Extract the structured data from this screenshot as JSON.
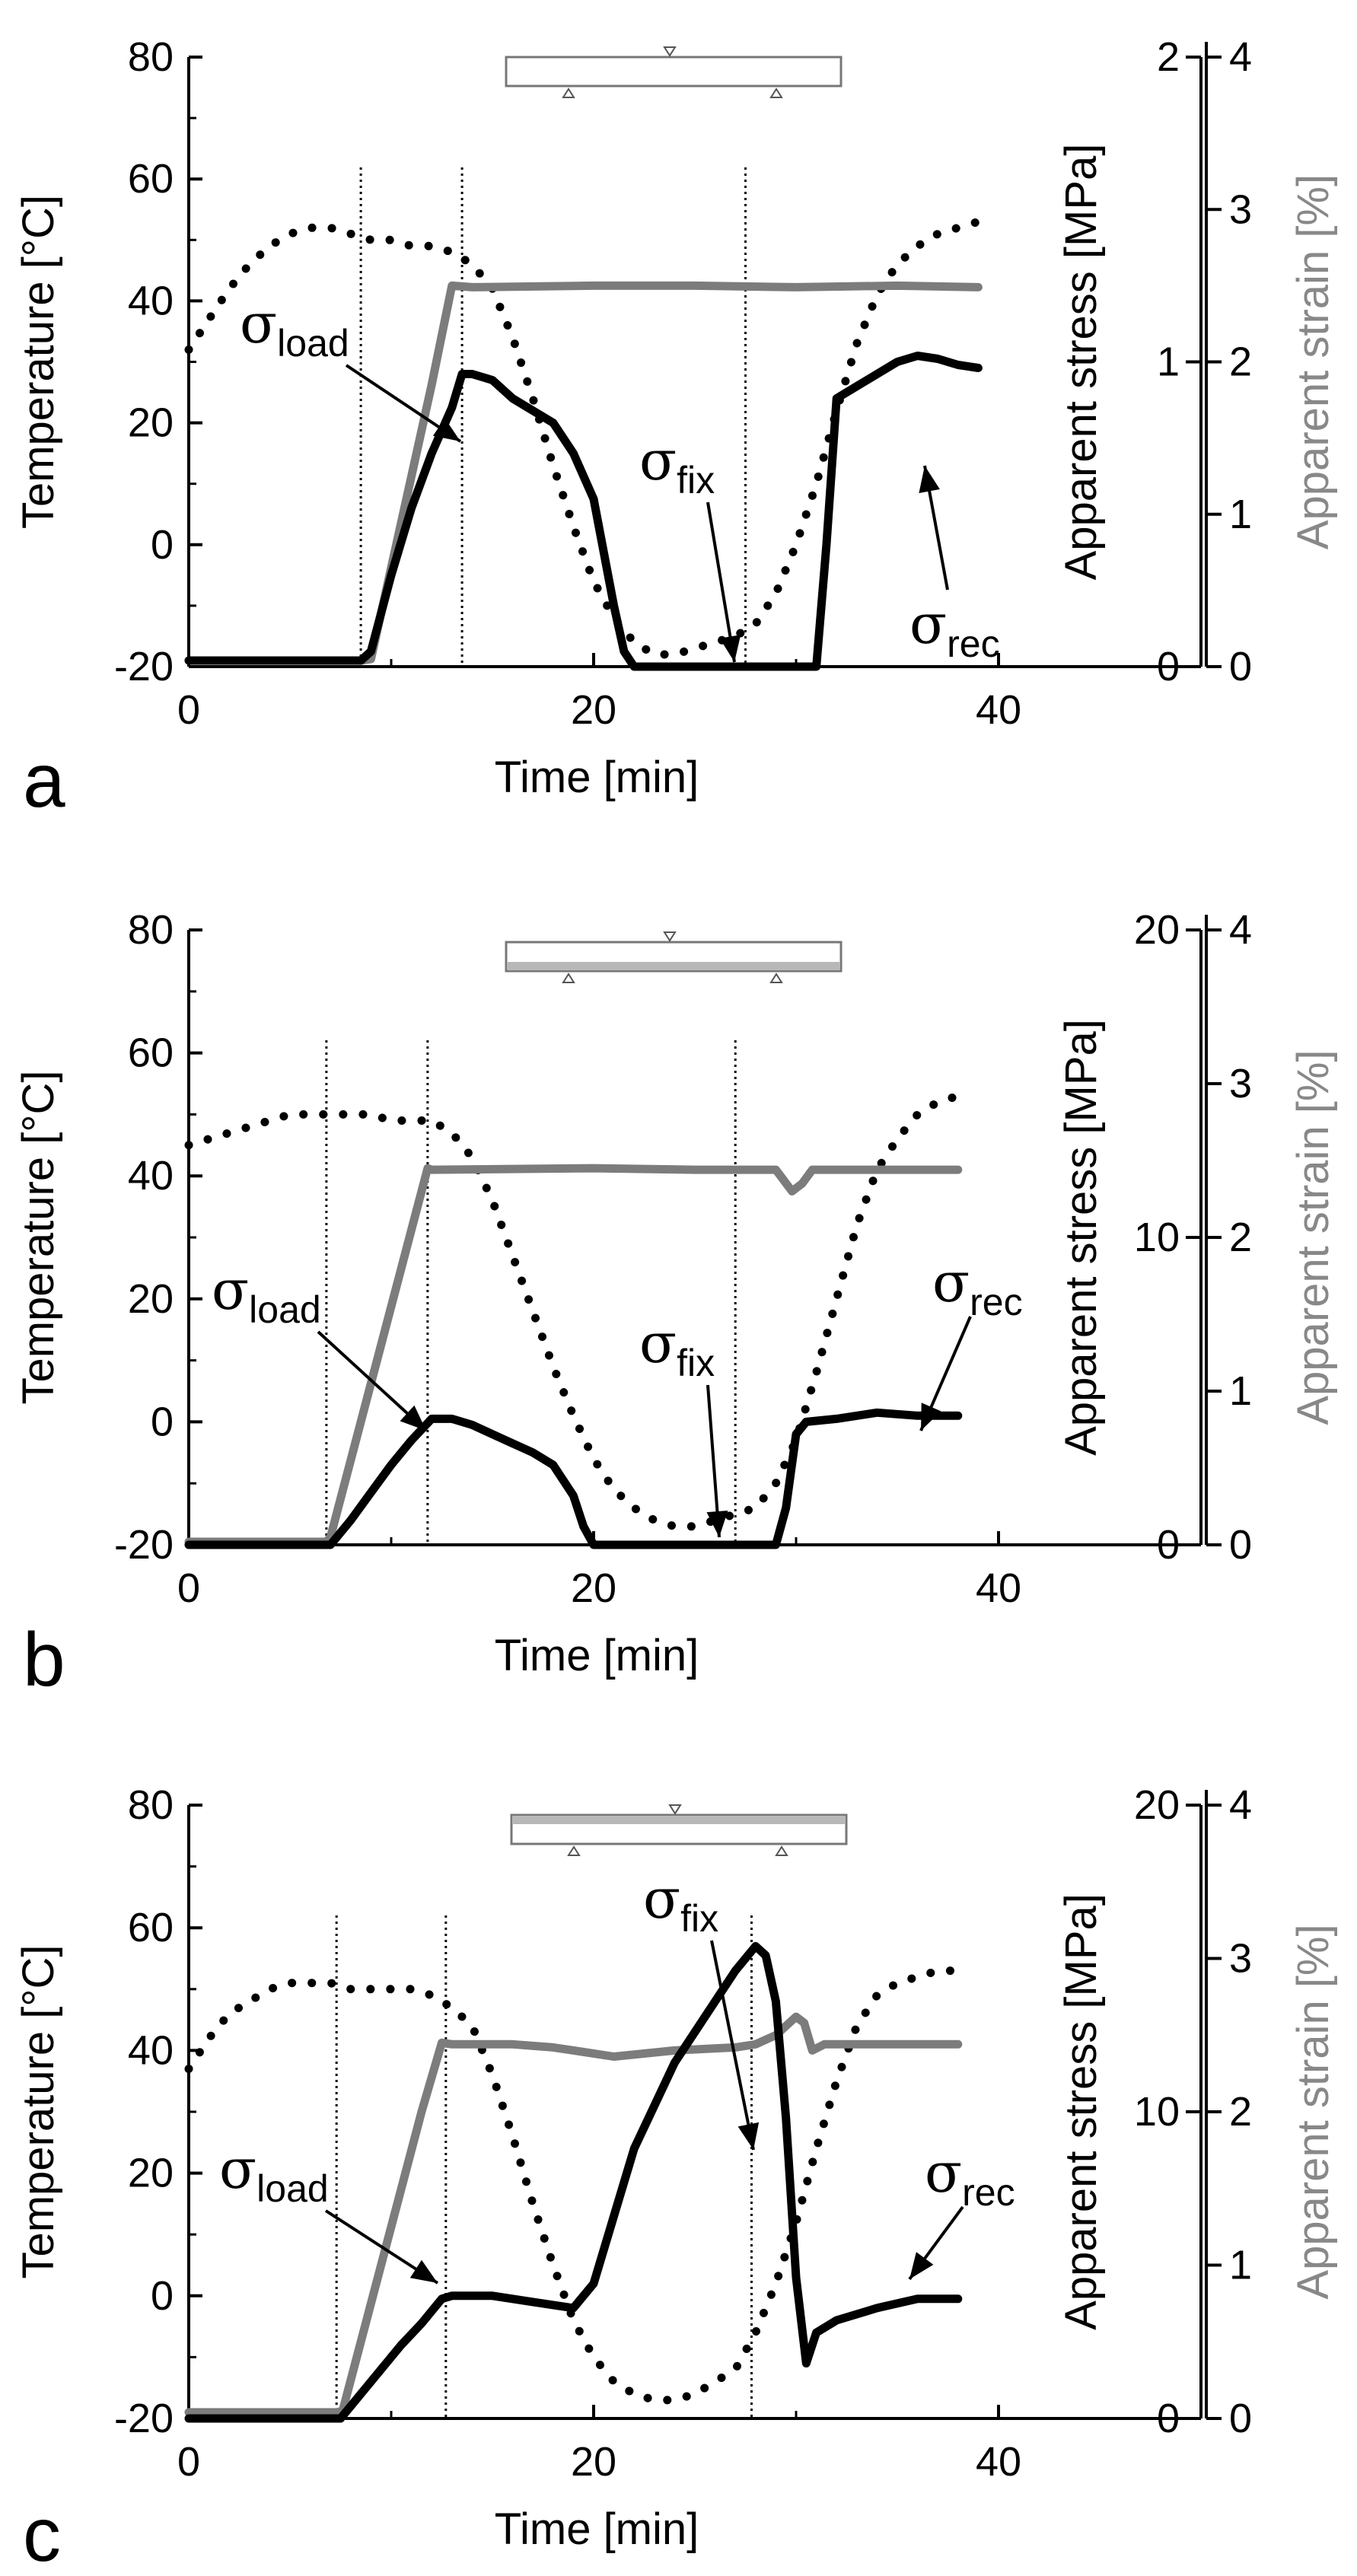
{
  "chart_data": [
    {
      "panel": "a",
      "type": "line",
      "xlabel": "Time [min]",
      "ylabel_left": "Temperature [°C]",
      "ylabel_stress": "Apparent stress [MPa]",
      "ylabel_strain": "Apparent strain [%]",
      "xlim": [
        0,
        50
      ],
      "ylim_temp": [
        -20,
        80
      ],
      "ylim_stress": [
        0,
        2
      ],
      "ylim_strain": [
        0,
        4
      ],
      "x_ticks": [
        "0",
        "20",
        "40"
      ],
      "temp_ticks": [
        "-20",
        "0",
        "20",
        "40",
        "60",
        "80"
      ],
      "stress_ticks": [
        "0",
        "1",
        "2"
      ],
      "strain_ticks": [
        "0",
        "1",
        "2",
        "3",
        "4"
      ],
      "vlines": [
        8.5,
        13.5,
        27.5
      ],
      "annotations": {
        "load": {
          "sym": "σ",
          "sub": "load"
        },
        "fix": {
          "sym": "σ",
          "sub": "fix"
        },
        "rec": {
          "sym": "σ",
          "sub": "rec"
        }
      },
      "series": [
        {
          "name": "Temperature",
          "axis": "temp",
          "style": "dotted",
          "x": [
            0,
            1,
            2,
            3,
            4,
            5,
            6,
            7,
            8,
            9,
            10,
            11,
            12,
            13,
            14,
            15,
            16,
            17,
            18,
            19,
            20,
            21,
            22,
            23,
            24,
            25,
            26,
            27,
            28,
            29,
            30,
            31,
            32,
            33,
            34,
            35,
            36,
            37,
            38,
            39
          ],
          "y": [
            32,
            37,
            42,
            46,
            49,
            51,
            52,
            52,
            51,
            50,
            50,
            49,
            49,
            48,
            46,
            42,
            34,
            24,
            13,
            3,
            -6,
            -12,
            -16,
            -18,
            -18,
            -17,
            -16,
            -15,
            -13,
            -8,
            0,
            10,
            22,
            33,
            41,
            46,
            49,
            51,
            52,
            53
          ]
        },
        {
          "name": "Apparent strain",
          "axis": "strain",
          "style": "solid-gray",
          "x": [
            0,
            8.5,
            9,
            10,
            11,
            12,
            13,
            14,
            20,
            25,
            30,
            35,
            39
          ],
          "y": [
            0.04,
            0.04,
            0.05,
            0.65,
            1.25,
            1.85,
            2.5,
            2.49,
            2.5,
            2.5,
            2.49,
            2.5,
            2.49
          ]
        },
        {
          "name": "Apparent stress",
          "axis": "stress",
          "style": "solid-black",
          "x": [
            0,
            8.5,
            9,
            10,
            11,
            12,
            13,
            13.5,
            14,
            15,
            16,
            17,
            18,
            19,
            20,
            21,
            21.5,
            22,
            25,
            27,
            28,
            29,
            30,
            31,
            31.5,
            32,
            32.5,
            33,
            34,
            35,
            36,
            37,
            38,
            39
          ],
          "y": [
            0.02,
            0.02,
            0.05,
            0.3,
            0.52,
            0.7,
            0.85,
            0.96,
            0.96,
            0.94,
            0.88,
            0.84,
            0.8,
            0.7,
            0.55,
            0.2,
            0.05,
            0,
            0,
            0,
            0,
            0,
            0,
            0,
            0.4,
            0.88,
            0.9,
            0.92,
            0.96,
            1.0,
            1.02,
            1.01,
            0.99,
            0.98
          ]
        }
      ]
    },
    {
      "panel": "b",
      "type": "line",
      "xlabel": "Time [min]",
      "ylabel_left": "Temperature [°C]",
      "ylabel_stress": "Apparent stress [MPa]",
      "ylabel_strain": "Apparent strain [%]",
      "xlim": [
        0,
        50
      ],
      "ylim_temp": [
        -20,
        80
      ],
      "ylim_stress": [
        0,
        20
      ],
      "ylim_strain": [
        0,
        4
      ],
      "x_ticks": [
        "0",
        "20",
        "40"
      ],
      "temp_ticks": [
        "-20",
        "0",
        "20",
        "40",
        "60",
        "80"
      ],
      "stress_ticks": [
        "0",
        "10",
        "20"
      ],
      "strain_ticks": [
        "0",
        "1",
        "2",
        "3",
        "4"
      ],
      "vlines": [
        6.8,
        11.8,
        27
      ],
      "annotations": {
        "load": {
          "sym": "σ",
          "sub": "load"
        },
        "fix": {
          "sym": "σ",
          "sub": "fix"
        },
        "rec": {
          "sym": "σ",
          "sub": "rec"
        }
      },
      "series": [
        {
          "name": "Temperature",
          "axis": "temp",
          "style": "dotted",
          "x": [
            0,
            1,
            2,
            3,
            4,
            5,
            6,
            7,
            8,
            9,
            10,
            11,
            12,
            13,
            14,
            15,
            16,
            17,
            18,
            19,
            20,
            21,
            22,
            23,
            24,
            25,
            26,
            27,
            28,
            29,
            30,
            31,
            32,
            33,
            34,
            35,
            36,
            37,
            38
          ],
          "y": [
            45,
            46,
            47,
            48,
            49,
            50,
            50,
            50,
            50,
            50,
            49,
            49,
            49,
            47,
            43,
            36,
            27,
            18,
            9,
            1,
            -6,
            -11,
            -14,
            -16,
            -17,
            -17,
            -16,
            -15,
            -14,
            -10,
            -3,
            8,
            20,
            32,
            41,
            46,
            50,
            52,
            53
          ]
        },
        {
          "name": "Apparent strain",
          "axis": "strain",
          "style": "solid-gray",
          "x": [
            0,
            6.8,
            7,
            8,
            9,
            10,
            11,
            11.8,
            12,
            20,
            25,
            29,
            29.8,
            30.3,
            30.8,
            35,
            38
          ],
          "y": [
            0.02,
            0.02,
            0.05,
            0.55,
            1.05,
            1.55,
            2.05,
            2.45,
            2.44,
            2.45,
            2.44,
            2.44,
            2.3,
            2.35,
            2.44,
            2.44,
            2.44
          ]
        },
        {
          "name": "Apparent stress",
          "axis": "stress",
          "style": "solid-black",
          "x": [
            0,
            7,
            8,
            9,
            10,
            11,
            12,
            13,
            14,
            15,
            16,
            17,
            18,
            19,
            19.5,
            20,
            25,
            29,
            29.5,
            30,
            30.5,
            32,
            34,
            36,
            38
          ],
          "y": [
            0,
            0,
            0.8,
            1.7,
            2.6,
            3.4,
            4.1,
            4.1,
            3.9,
            3.6,
            3.3,
            3.0,
            2.6,
            1.6,
            0.6,
            0,
            0,
            0,
            1.2,
            3.6,
            4.0,
            4.1,
            4.3,
            4.2,
            4.2
          ]
        }
      ]
    },
    {
      "panel": "c",
      "type": "line",
      "xlabel": "Time [min]",
      "ylabel_left": "Temperature [°C]",
      "ylabel_stress": "Apparent stress [MPa]",
      "ylabel_strain": "Apparent strain [%]",
      "xlim": [
        0,
        50
      ],
      "ylim_temp": [
        -20,
        80
      ],
      "ylim_stress": [
        0,
        20
      ],
      "ylim_strain": [
        0,
        4
      ],
      "x_ticks": [
        "0",
        "20",
        "40"
      ],
      "temp_ticks": [
        "-20",
        "0",
        "20",
        "40",
        "60",
        "80"
      ],
      "stress_ticks": [
        "0",
        "10",
        "20"
      ],
      "strain_ticks": [
        "0",
        "1",
        "2",
        "3",
        "4"
      ],
      "vlines": [
        7.3,
        12.7,
        27.8
      ],
      "annotations": {
        "load": {
          "sym": "σ",
          "sub": "load"
        },
        "fix": {
          "sym": "σ",
          "sub": "fix"
        },
        "rec": {
          "sym": "σ",
          "sub": "rec"
        }
      },
      "series": [
        {
          "name": "Temperature",
          "axis": "temp",
          "style": "dotted",
          "x": [
            0,
            1,
            2,
            3,
            4,
            5,
            6,
            7,
            8,
            9,
            10,
            11,
            12,
            13,
            14,
            15,
            16,
            17,
            18,
            19,
            20,
            21,
            22,
            23,
            24,
            25,
            26,
            27,
            28,
            29,
            30,
            31,
            32,
            33,
            34,
            35,
            36,
            37,
            38
          ],
          "y": [
            37,
            42,
            46,
            48,
            50,
            51,
            51,
            51,
            50,
            50,
            50,
            50,
            49,
            47,
            44,
            36,
            26,
            15,
            5,
            -4,
            -10,
            -14,
            -16,
            -17,
            -17,
            -16,
            -14,
            -12,
            -6,
            2,
            12,
            24,
            35,
            44,
            49,
            51,
            52,
            53,
            53
          ]
        },
        {
          "name": "Apparent strain",
          "axis": "strain",
          "style": "solid-gray",
          "x": [
            0,
            7.3,
            7.6,
            8.5,
            9.5,
            10.5,
            11.5,
            12.5,
            13,
            16,
            18,
            20,
            21,
            24,
            27,
            28,
            29,
            30,
            30.4,
            30.8,
            31.4,
            35,
            38
          ],
          "y": [
            0.04,
            0.04,
            0.05,
            0.5,
            1.0,
            1.5,
            2.0,
            2.45,
            2.44,
            2.44,
            2.42,
            2.38,
            2.36,
            2.4,
            2.42,
            2.44,
            2.5,
            2.62,
            2.58,
            2.4,
            2.44,
            2.44,
            2.44
          ]
        },
        {
          "name": "Apparent stress",
          "axis": "stress",
          "style": "solid-black",
          "x": [
            0,
            7.5,
            8.5,
            9.5,
            10.5,
            11.5,
            12.5,
            13,
            15,
            17,
            19,
            20,
            21,
            22,
            24,
            26,
            27,
            28,
            28.5,
            29,
            29.5,
            30,
            30.5,
            31,
            32,
            34,
            36,
            38
          ],
          "y": [
            0,
            0,
            0.8,
            1.6,
            2.4,
            3.1,
            3.9,
            4.0,
            4.0,
            3.8,
            3.6,
            4.4,
            6.6,
            8.8,
            11.6,
            13.6,
            14.6,
            15.4,
            15.1,
            13.6,
            9.8,
            4.6,
            1.8,
            2.8,
            3.2,
            3.6,
            3.9,
            3.9
          ]
        }
      ]
    }
  ]
}
